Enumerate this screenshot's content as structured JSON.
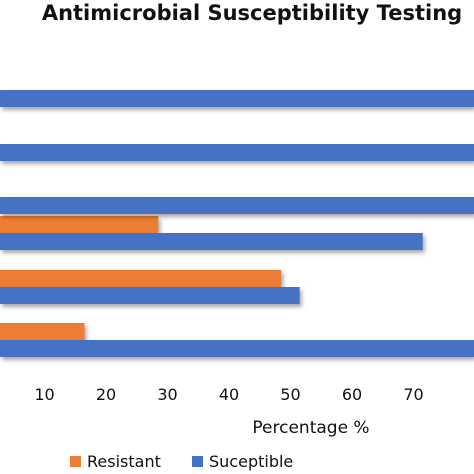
{
  "chart_data": {
    "type": "bar",
    "orientation": "horizontal",
    "title": "Antimicrobial Susceptibility Testing",
    "xlabel": "Percentage %",
    "ylabel": "",
    "xlim": [
      0,
      80
    ],
    "xticks": [
      10,
      20,
      30,
      40,
      50,
      60,
      70
    ],
    "categories": [
      "",
      "",
      "",
      "",
      "",
      ""
    ],
    "series": [
      {
        "name": "Resistant",
        "color": "#ED7D31",
        "values": [
          0,
          0,
          0,
          28.5,
          48.5,
          16.5
        ]
      },
      {
        "name": "Suceptible",
        "color": "#4472C4",
        "values": [
          80,
          80,
          80,
          71.5,
          51.5,
          80
        ]
      }
    ],
    "legend": "bottom",
    "grid": false
  }
}
